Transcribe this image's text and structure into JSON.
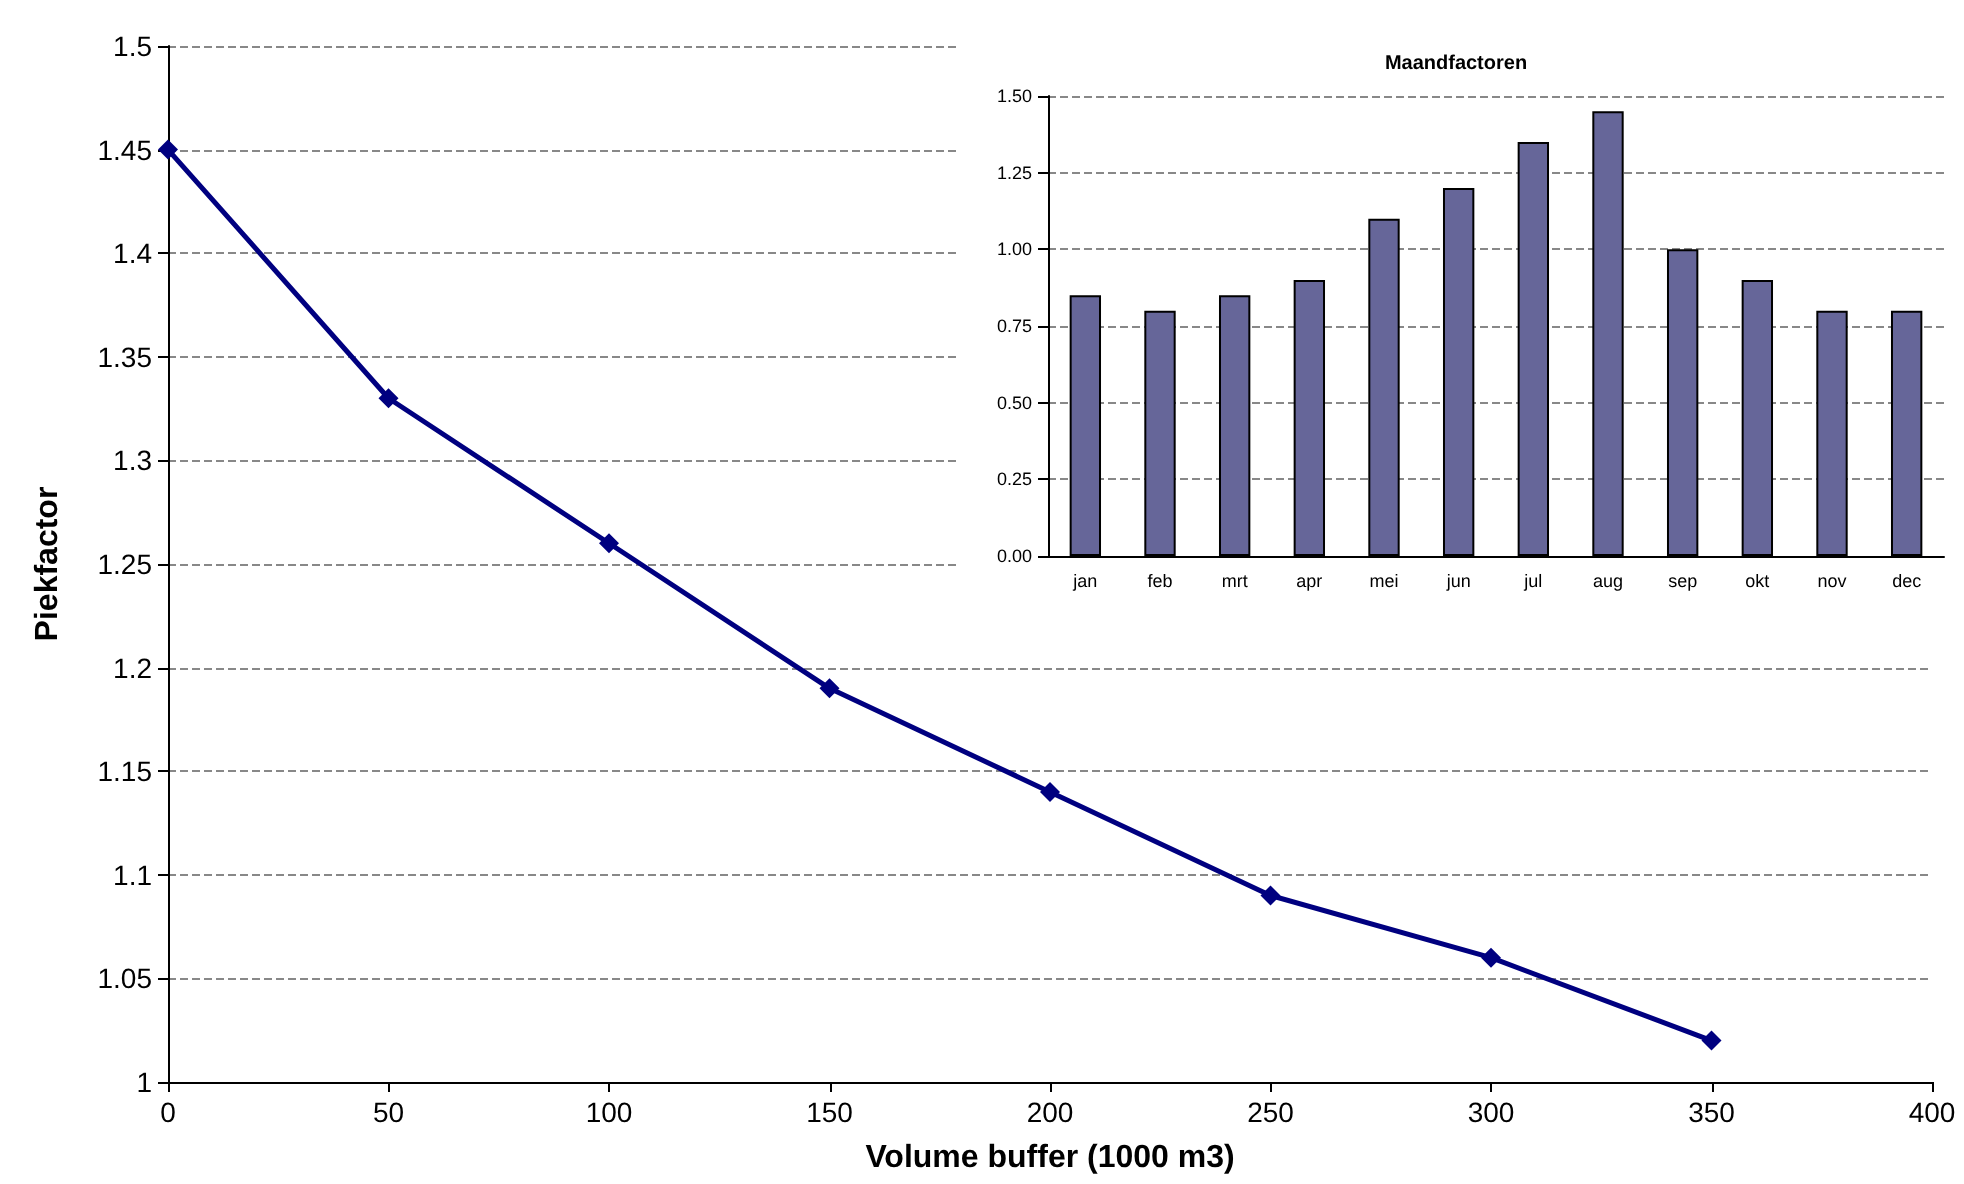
{
  "chart_data": [
    {
      "type": "line",
      "xlabel": "Volume buffer (1000 m3)",
      "ylabel": "Piekfactor",
      "x": [
        0,
        50,
        100,
        150,
        200,
        250,
        300,
        350
      ],
      "series": [
        {
          "color": "#000080",
          "values": [
            1.45,
            1.33,
            1.26,
            1.19,
            1.14,
            1.09,
            1.06,
            1.02
          ]
        }
      ],
      "xlim": [
        0,
        400
      ],
      "xticks": [
        0,
        50,
        100,
        150,
        200,
        250,
        300,
        350,
        400
      ],
      "ylim": [
        1,
        1.5
      ],
      "yticks": [
        1,
        1.05,
        1.1,
        1.15,
        1.2,
        1.25,
        1.3,
        1.35,
        1.4,
        1.45,
        1.5
      ],
      "grid": "y",
      "marker": "diamond",
      "line_style": "solid"
    },
    {
      "type": "bar",
      "title": "Maandfactoren",
      "categories": [
        "jan",
        "feb",
        "mrt",
        "apr",
        "mei",
        "jun",
        "jul",
        "aug",
        "sep",
        "okt",
        "nov",
        "dec"
      ],
      "series": [
        {
          "color": "#666699",
          "values": [
            0.85,
            0.8,
            0.85,
            0.9,
            1.1,
            1.2,
            1.35,
            1.45,
            1.0,
            0.9,
            0.8,
            0.8
          ]
        }
      ],
      "ylim": [
        0,
        1.5
      ],
      "yticks": [
        {
          "value": 0,
          "label": "0.00"
        },
        {
          "value": 0.25,
          "label": "0.25"
        },
        {
          "value": 0.5,
          "label": "0.50"
        },
        {
          "value": 0.75,
          "label": "0.75"
        },
        {
          "value": 1,
          "label": "1.00"
        },
        {
          "value": 1.25,
          "label": "1.25"
        },
        {
          "value": 1.5,
          "label": "1.50"
        }
      ],
      "grid": "y"
    }
  ]
}
